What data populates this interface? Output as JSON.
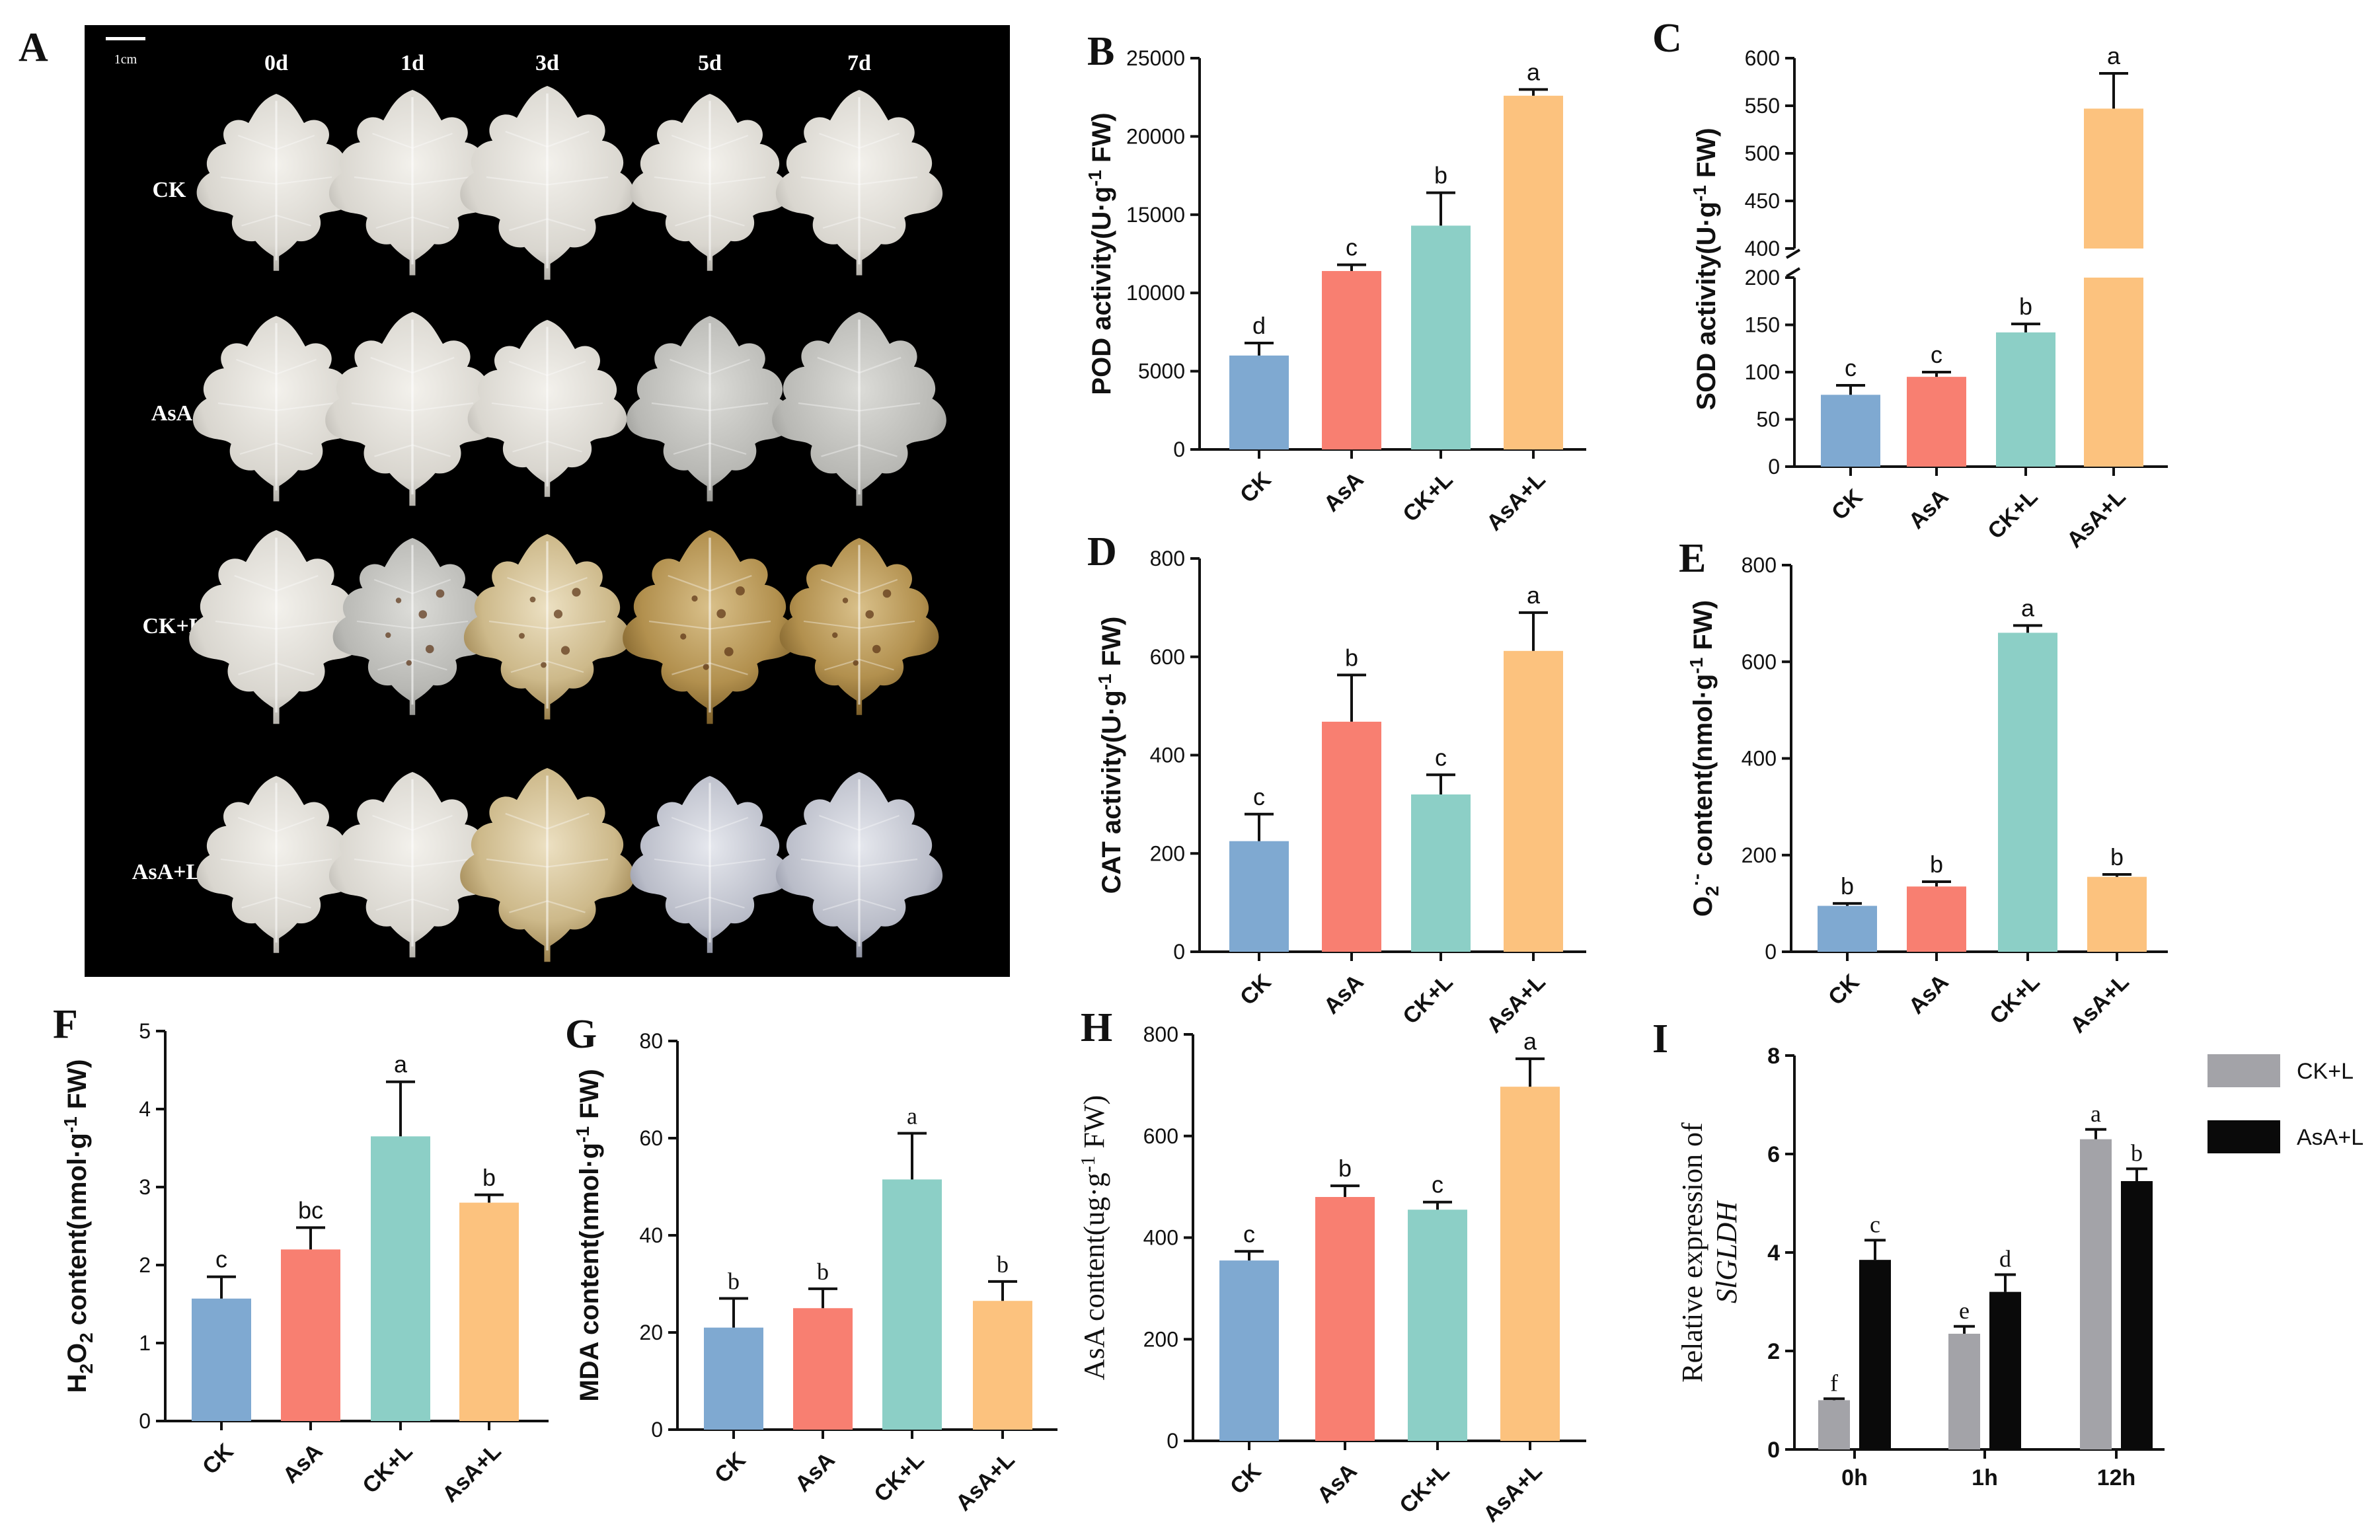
{
  "figure": {
    "panel_A": {
      "letter": "A",
      "scale_label": "1cm",
      "columns": [
        "0d",
        "1d",
        "3d",
        "5d",
        "7d"
      ],
      "rows": [
        "CK",
        "AsA",
        "CK+L",
        "AsA+L"
      ]
    },
    "colors": {
      "CK": "#7fa9d1",
      "AsA": "#f87f71",
      "CK+L": "#8ccfc6",
      "AsA+L": "#fcc27e",
      "gray": "#a3a3a8",
      "black": "#0a0a0a"
    }
  },
  "chart_data": [
    {
      "id": "B",
      "type": "bar",
      "letter": "B",
      "categories": [
        "CK",
        "AsA",
        "CK+L",
        "AsA+L"
      ],
      "values": [
        6000,
        11400,
        14300,
        22600
      ],
      "errors": [
        800,
        400,
        2100,
        400
      ],
      "letters": [
        "d",
        "c",
        "b",
        "a"
      ],
      "ylabel": "POD activity(U·g<sup>-1</sup> FW)",
      "ylim": [
        0,
        25000
      ],
      "yticks": [
        "0",
        "5000",
        "10000",
        "15000",
        "20000",
        "25000"
      ]
    },
    {
      "id": "C",
      "type": "bar",
      "letter": "C",
      "categories": [
        "CK",
        "AsA",
        "CK+L",
        "AsA+L"
      ],
      "values": [
        76,
        95,
        142,
        547
      ],
      "errors": [
        10,
        5,
        9,
        37
      ],
      "letters": [
        "c",
        "c",
        "b",
        "a"
      ],
      "ylabel": "SOD activity(U·g<sup>-1</sup> FW)",
      "ylim": [
        0,
        600
      ],
      "axis_break": [
        200,
        400
      ],
      "yticks_lower": [
        "0",
        "50",
        "100",
        "150",
        "200"
      ],
      "yticks_upper": [
        "400",
        "450",
        "500",
        "550",
        "600"
      ]
    },
    {
      "id": "D",
      "type": "bar",
      "letter": "D",
      "categories": [
        "CK",
        "AsA",
        "CK+L",
        "AsA+L"
      ],
      "values": [
        225,
        468,
        320,
        612
      ],
      "errors": [
        55,
        95,
        40,
        78
      ],
      "letters": [
        "c",
        "b",
        "c",
        "a"
      ],
      "ylabel": "CAT activity(U·g<sup>-1</sup> FW)",
      "ylim": [
        0,
        800
      ],
      "yticks": [
        "0",
        "200",
        "400",
        "600",
        "800"
      ]
    },
    {
      "id": "E",
      "type": "bar",
      "letter": "E",
      "categories": [
        "CK",
        "AsA",
        "CK+L",
        "AsA+L"
      ],
      "values": [
        95,
        135,
        660,
        155
      ],
      "errors": [
        5,
        10,
        15,
        5
      ],
      "letters": [
        "b",
        "b",
        "a",
        "b"
      ],
      "ylabel": "O<sub>2</sub><sup>·-</sup> content(nmol·g<sup>-1</sup> FW)",
      "ylim": [
        0,
        800
      ],
      "yticks": [
        "0",
        "200",
        "400",
        "600",
        "800"
      ]
    },
    {
      "id": "F",
      "type": "bar",
      "letter": "F",
      "categories": [
        "CK",
        "AsA",
        "CK+L",
        "AsA+L"
      ],
      "values": [
        1.57,
        2.2,
        3.65,
        2.8
      ],
      "errors": [
        0.28,
        0.28,
        0.7,
        0.1
      ],
      "letters": [
        "c",
        "bc",
        "a",
        "b"
      ],
      "ylabel": "H<sub>2</sub>O<sub>2</sub> content(nmol·g<sup>-1</sup> FW)",
      "ylim": [
        0,
        5
      ],
      "yticks": [
        "0",
        "1",
        "2",
        "3",
        "4",
        "5"
      ]
    },
    {
      "id": "G",
      "type": "bar",
      "letter": "G",
      "categories": [
        "CK",
        "AsA",
        "CK+L",
        "AsA+L"
      ],
      "values": [
        21,
        25,
        51.5,
        26.5
      ],
      "errors": [
        6,
        4,
        9.5,
        4
      ],
      "letters": [
        "b",
        "b",
        "a",
        "b"
      ],
      "letters_serif": true,
      "ylabel": "MDA content(nmol·g<sup>-1</sup> FW)",
      "ylim": [
        0,
        80
      ],
      "yticks": [
        "0",
        "20",
        "40",
        "60",
        "80"
      ]
    },
    {
      "id": "H",
      "type": "bar",
      "letter": "H",
      "categories": [
        "CK",
        "AsA",
        "CK+L",
        "AsA+L"
      ],
      "values": [
        355,
        480,
        455,
        697
      ],
      "errors": [
        18,
        22,
        15,
        55
      ],
      "letters": [
        "c",
        "b",
        "c",
        "a"
      ],
      "ylabel_serif": true,
      "ylabel": "AsA content(ug·g<sup>-1</sup> FW)",
      "ylim": [
        0,
        800
      ],
      "yticks": [
        "0",
        "200",
        "400",
        "600",
        "800"
      ]
    },
    {
      "id": "I",
      "type": "bar",
      "letter": "I",
      "categories": [
        "0h",
        "1h",
        "12h"
      ],
      "series": [
        {
          "name": "CK+L",
          "color": "gray",
          "values": [
            1.0,
            2.35,
            6.3
          ],
          "errors": [
            0.03,
            0.15,
            0.2
          ],
          "letters": [
            "f",
            "e",
            "a"
          ]
        },
        {
          "name": "AsA+L",
          "color": "black",
          "values": [
            3.85,
            3.2,
            5.45
          ],
          "errors": [
            0.4,
            0.35,
            0.25
          ],
          "letters": [
            "c",
            "d",
            "b"
          ]
        }
      ],
      "ylabel_line1": "Relative expression of",
      "ylabel_line2": "SlGLDH",
      "ylim": [
        0,
        8
      ],
      "yticks": [
        "0",
        "2",
        "4",
        "6",
        "8"
      ]
    }
  ]
}
